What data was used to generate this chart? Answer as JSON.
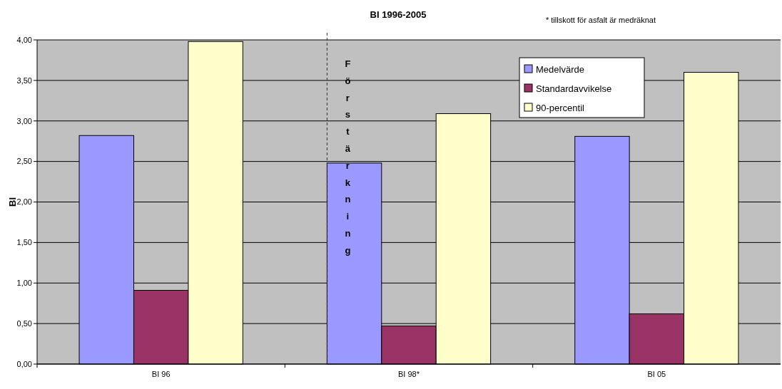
{
  "chart_data": {
    "type": "bar",
    "title": "BI 1996-2005",
    "ylabel": "BI",
    "annotations": [
      "* tillskott för asfalt är medräknat"
    ],
    "categories": [
      "BI 96",
      "BI 98*",
      "BI 05"
    ],
    "series": [
      {
        "name": "Medelvärde",
        "color": "#9999ff",
        "values": [
          2.82,
          2.48,
          2.81
        ]
      },
      {
        "name": "Standardavvikelse",
        "color": "#993366",
        "values": [
          0.91,
          0.47,
          0.62
        ]
      },
      {
        "name": "90-percentil",
        "color": "#ffffcc",
        "values": [
          3.98,
          3.09,
          3.6
        ]
      }
    ],
    "ylim": [
      0,
      4
    ],
    "yticks": [
      {
        "value": 0,
        "label": "0,00"
      },
      {
        "value": 0.5,
        "label": "0,50"
      },
      {
        "value": 1,
        "label": "1,00"
      },
      {
        "value": 1.5,
        "label": "1,50"
      },
      {
        "value": 2,
        "label": "2,00"
      },
      {
        "value": 2.5,
        "label": "2,50"
      },
      {
        "value": 3,
        "label": "3,00"
      },
      {
        "value": 3.5,
        "label": "3,50"
      },
      {
        "value": 4,
        "label": "4,00"
      }
    ],
    "ref_lines": [
      {
        "axis": "x",
        "value": "BI 98*",
        "label": "Förstärkning",
        "line_style": "dashed"
      }
    ],
    "grid": "y",
    "legend": "top"
  }
}
